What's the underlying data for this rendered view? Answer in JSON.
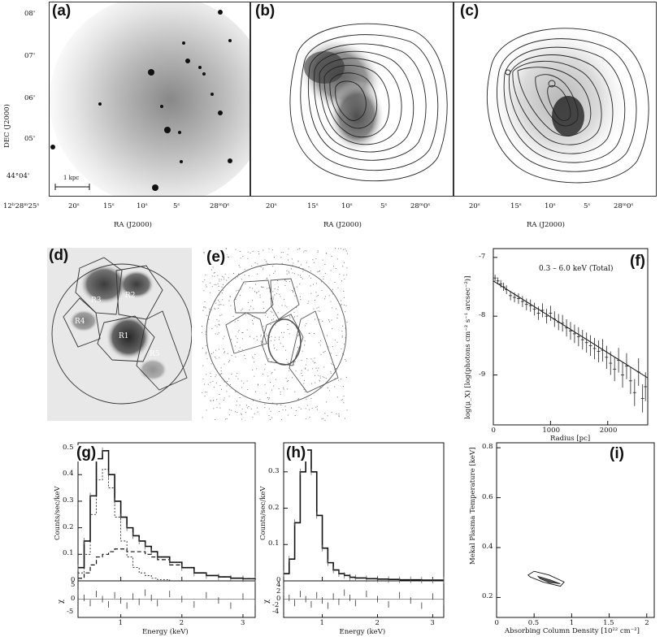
{
  "panels": {
    "a": {
      "label": "(a)",
      "scale_label": "1 kpc"
    },
    "b": {
      "label": "(b)"
    },
    "c": {
      "label": "(c)"
    },
    "d": {
      "label": "(d)",
      "regions": [
        "R1",
        "R2",
        "R3",
        "R4",
        "R5"
      ]
    },
    "e": {
      "label": "(e)"
    },
    "f": {
      "label": "(f)",
      "annotation": "0.3 – 6.0 keV (Total)"
    },
    "g": {
      "label": "(g)"
    },
    "h": {
      "label": "(h)"
    },
    "i": {
      "label": "(i)"
    }
  },
  "top_row": {
    "dec_axis_label": "DEC (J2000)",
    "ra_axis_label": "RA (J2000)",
    "dec_ticks": [
      "08'",
      "07'",
      "06'",
      "05'",
      "44°04'"
    ],
    "ra_ticks_a": [
      "12ʰ28ᵐ25ˢ",
      "20ˢ",
      "15ˢ",
      "10ˢ",
      "5ˢ",
      "28ᵐ0ˢ"
    ],
    "ra_ticks_bc": [
      "20ˢ",
      "15ˢ",
      "10ˢ",
      "5ˢ",
      "28ᵐ0ˢ"
    ]
  },
  "chart_data": [
    {
      "type": "scatter",
      "panel": "f",
      "xlabel": "Radius [pc]",
      "ylabel": "log(μ_X) [log(photons cm⁻² s⁻¹ arcsec⁻²)]",
      "xlim": [
        0,
        2700
      ],
      "ylim": [
        -9.85,
        -6.85
      ],
      "xticks": [
        "0",
        "1000",
        "2000"
      ],
      "yticks": [
        "-7",
        "-8",
        "-9"
      ],
      "points": {
        "x": [
          30,
          80,
          130,
          180,
          230,
          300,
          370,
          440,
          510,
          580,
          650,
          720,
          790,
          860,
          930,
          1000,
          1070,
          1140,
          1210,
          1280,
          1350,
          1420,
          1490,
          1560,
          1630,
          1700,
          1770,
          1840,
          1910,
          1980,
          2050,
          2120,
          2190,
          2260,
          2330,
          2400,
          2470,
          2540,
          2610,
          2660
        ],
        "y": [
          -7.35,
          -7.4,
          -7.45,
          -7.5,
          -7.55,
          -7.65,
          -7.68,
          -7.7,
          -7.75,
          -7.8,
          -7.82,
          -7.88,
          -7.95,
          -7.9,
          -8.0,
          -7.95,
          -8.05,
          -8.1,
          -8.12,
          -8.2,
          -8.25,
          -8.3,
          -8.35,
          -8.4,
          -8.45,
          -8.5,
          -8.55,
          -8.6,
          -8.58,
          -8.7,
          -8.8,
          -8.9,
          -8.75,
          -9.0,
          -8.85,
          -9.1,
          -9.3,
          -8.95,
          -9.4,
          -9.2
        ]
      },
      "model": {
        "x": [
          0,
          2700
        ],
        "y": [
          -7.4,
          -9.05
        ]
      }
    },
    {
      "type": "line",
      "panel": "g",
      "xlabel": "Energy (keV)",
      "ylabel": "Counts/sec/keV",
      "xlim": [
        0.3,
        3.2
      ],
      "ylim": [
        0,
        0.52
      ],
      "xticks": [
        "1",
        "2",
        "3"
      ],
      "yticks": [
        "0",
        "0.1",
        "0.2",
        "0.3",
        "0.4",
        "0.5"
      ],
      "residual_ylabel": "χ",
      "residual_ticks": [
        "5",
        "0",
        "-5"
      ],
      "x": [
        0.3,
        0.4,
        0.5,
        0.6,
        0.7,
        0.8,
        0.9,
        1.0,
        1.1,
        1.2,
        1.3,
        1.4,
        1.5,
        1.6,
        1.8,
        2.0,
        2.2,
        2.4,
        2.6,
        2.8,
        3.0,
        3.2
      ],
      "series": [
        {
          "values": [
            0.05,
            0.15,
            0.32,
            0.46,
            0.49,
            0.4,
            0.3,
            0.24,
            0.2,
            0.17,
            0.15,
            0.13,
            0.11,
            0.09,
            0.07,
            0.05,
            0.03,
            0.02,
            0.015,
            0.01,
            0.008,
            0.005
          ]
        },
        {
          "values": [
            0.03,
            0.1,
            0.25,
            0.38,
            0.42,
            0.35,
            0.24,
            0.15,
            0.09,
            0.05,
            0.03,
            0.02,
            0.01,
            0.005,
            0,
            0,
            0,
            0,
            0,
            0,
            0,
            0
          ]
        },
        {
          "values": [
            0.01,
            0.03,
            0.06,
            0.09,
            0.1,
            0.11,
            0.12,
            0.12,
            0.11,
            0.11,
            0.11,
            0.1,
            0.09,
            0.08,
            0.06,
            0.05,
            0.03,
            0.02,
            0.015,
            0.01,
            0.008,
            0.005
          ]
        }
      ]
    },
    {
      "type": "line",
      "panel": "h",
      "xlabel": "Energy (keV)",
      "ylabel": "Counts/sec/keV",
      "xlim": [
        0.3,
        3.2
      ],
      "ylim": [
        0,
        0.38
      ],
      "xticks": [
        "1",
        "2",
        "3"
      ],
      "yticks": [
        "0",
        "0.1",
        "0.2",
        "0.3"
      ],
      "residual_ylabel": "χ",
      "residual_ticks": [
        "4",
        "2",
        "0",
        "-2",
        "-4"
      ],
      "x": [
        0.3,
        0.4,
        0.5,
        0.6,
        0.7,
        0.8,
        0.9,
        1.0,
        1.1,
        1.2,
        1.3,
        1.4,
        1.5,
        1.6,
        1.8,
        2.0,
        2.2,
        2.4,
        2.6,
        2.8,
        3.0,
        3.2
      ],
      "series": [
        {
          "values": [
            0.02,
            0.06,
            0.16,
            0.3,
            0.36,
            0.3,
            0.18,
            0.09,
            0.05,
            0.03,
            0.02,
            0.015,
            0.01,
            0.008,
            0.006,
            0.005,
            0.004,
            0.003,
            0.003,
            0.002,
            0.002,
            0.002
          ]
        }
      ]
    },
    {
      "type": "line",
      "panel": "i",
      "xlabel": "Absorbing Column Density [10²² cm⁻²]",
      "ylabel": "Mekal Plasma Temperature [keV]",
      "xlim": [
        0,
        2.1
      ],
      "ylim": [
        0.12,
        0.82
      ],
      "xticks": [
        "0",
        "0.5",
        "1",
        "1.5",
        "2"
      ],
      "yticks": [
        "0.2",
        "0.4",
        "0.6",
        "0.8"
      ]
    }
  ]
}
